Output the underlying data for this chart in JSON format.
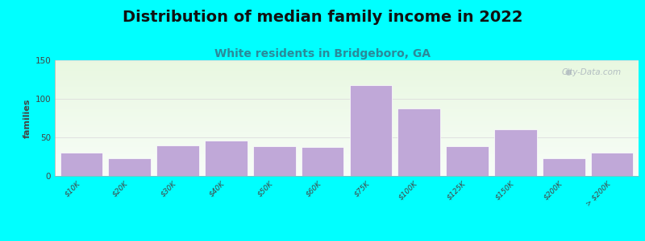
{
  "title": "Distribution of median family income in 2022",
  "subtitle": "White residents in Bridgeboro, GA",
  "ylabel": "families",
  "categories": [
    "$10K",
    "$20K",
    "$30K",
    "$40K",
    "$50K",
    "$60K",
    "$75K",
    "$100K",
    "$125K",
    "$150K",
    "$200K",
    "> $200K"
  ],
  "values": [
    30,
    23,
    40,
    46,
    39,
    37,
    118,
    88,
    39,
    60,
    23,
    30
  ],
  "bar_color": "#c0a8d8",
  "bar_edgecolor": "#ffffff",
  "ylim": [
    0,
    150
  ],
  "yticks": [
    0,
    50,
    100,
    150
  ],
  "background_outer": "#00ffff",
  "background_inner_top": "#e8f5e0",
  "background_inner_bottom": "#f8faf8",
  "title_fontsize": 14,
  "subtitle_fontsize": 10,
  "subtitle_color": "#2a8a9a",
  "ylabel_fontsize": 8,
  "tick_fontsize": 6.5,
  "watermark_text": "City-Data.com",
  "watermark_color": "#aab4bc",
  "grid_color": "#dddddd",
  "spine_color": "#aaaaaa"
}
